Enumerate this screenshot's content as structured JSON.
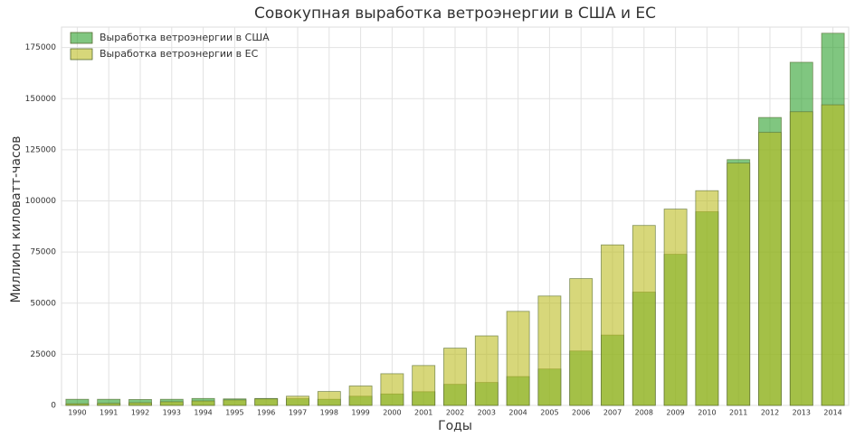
{
  "chart_data": {
    "type": "bar",
    "barmode": "overlay",
    "title": "Совокупная выработка ветроэнергии в США и ЕС",
    "x_label": "Годы",
    "y_label": "Миллион киловатт-часов",
    "categories": [
      "1990",
      "1991",
      "1992",
      "1993",
      "1994",
      "1995",
      "1996",
      "1997",
      "1998",
      "1999",
      "2000",
      "2001",
      "2002",
      "2003",
      "2004",
      "2005",
      "2006",
      "2007",
      "2008",
      "2009",
      "2010",
      "2011",
      "2012",
      "2013",
      "2014"
    ],
    "series": [
      {
        "name": "Выработка ветроэнергии в США",
        "color": "#2ca02c",
        "values": [
          3000,
          3000,
          2900,
          3000,
          3400,
          3200,
          3400,
          3300,
          3000,
          4500,
          5600,
          6700,
          10300,
          11200,
          14100,
          17800,
          26600,
          34400,
          55400,
          73900,
          94700,
          120200,
          140800,
          167800,
          182000
        ]
      },
      {
        "name": "Выработка ветроэнергии в ЕС",
        "color": "#bcbd22",
        "values": [
          800,
          1000,
          1300,
          1800,
          2200,
          2700,
          3200,
          4500,
          6800,
          9500,
          15500,
          19500,
          28000,
          34000,
          46000,
          53500,
          62000,
          78500,
          88000,
          96000,
          105000,
          118500,
          133500,
          143600,
          147000
        ]
      }
    ],
    "ylim": [
      0,
      185000
    ],
    "yticks": [
      0,
      25000,
      50000,
      75000,
      100000,
      125000,
      150000,
      175000
    ],
    "grid": true,
    "legend": "upper-left",
    "opacity": 0.6
  }
}
